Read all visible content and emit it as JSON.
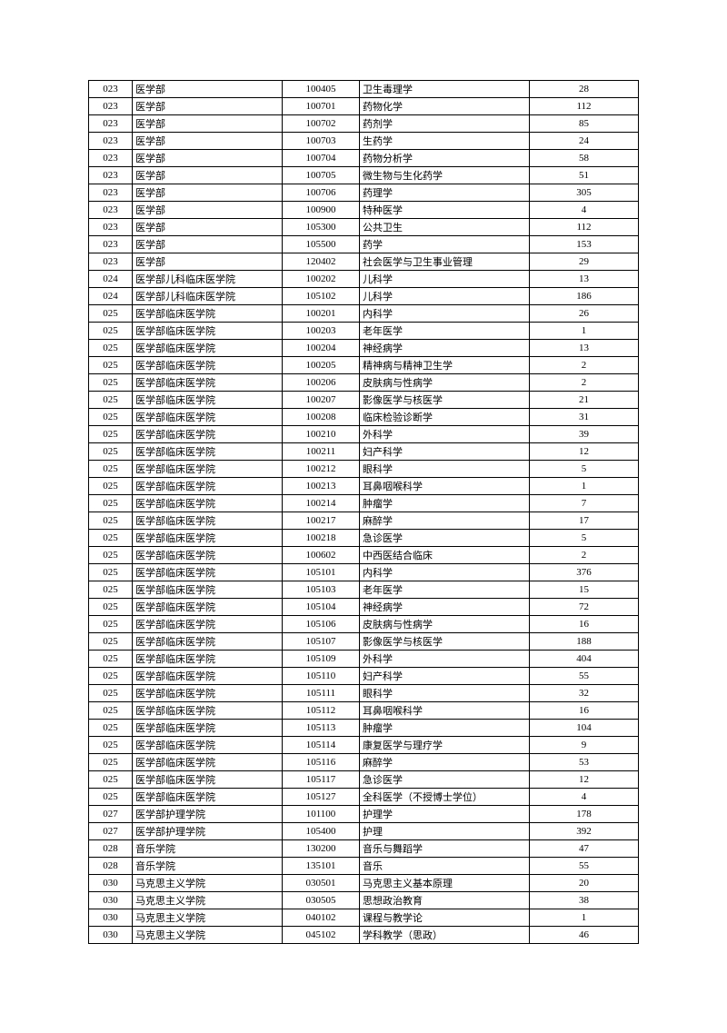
{
  "table": {
    "columns": [
      {
        "class": "col1",
        "align": "center"
      },
      {
        "class": "col2",
        "align": "left"
      },
      {
        "class": "col3",
        "align": "center"
      },
      {
        "class": "col4",
        "align": "left"
      },
      {
        "class": "col5",
        "align": "center"
      }
    ],
    "rows": [
      [
        "023",
        "医学部",
        "100405",
        "卫生毒理学",
        "28"
      ],
      [
        "023",
        "医学部",
        "100701",
        "药物化学",
        "112"
      ],
      [
        "023",
        "医学部",
        "100702",
        "药剂学",
        "85"
      ],
      [
        "023",
        "医学部",
        "100703",
        "生药学",
        "24"
      ],
      [
        "023",
        "医学部",
        "100704",
        "药物分析学",
        "58"
      ],
      [
        "023",
        "医学部",
        "100705",
        "微生物与生化药学",
        "51"
      ],
      [
        "023",
        "医学部",
        "100706",
        "药理学",
        "305"
      ],
      [
        "023",
        "医学部",
        "100900",
        "特种医学",
        "4"
      ],
      [
        "023",
        "医学部",
        "105300",
        "公共卫生",
        "112"
      ],
      [
        "023",
        "医学部",
        "105500",
        "药学",
        "153"
      ],
      [
        "023",
        "医学部",
        "120402",
        "社会医学与卫生事业管理",
        "29"
      ],
      [
        "024",
        "医学部儿科临床医学院",
        "100202",
        "儿科学",
        "13"
      ],
      [
        "024",
        "医学部儿科临床医学院",
        "105102",
        "儿科学",
        "186"
      ],
      [
        "025",
        "医学部临床医学院",
        "100201",
        "内科学",
        "26"
      ],
      [
        "025",
        "医学部临床医学院",
        "100203",
        "老年医学",
        "1"
      ],
      [
        "025",
        "医学部临床医学院",
        "100204",
        "神经病学",
        "13"
      ],
      [
        "025",
        "医学部临床医学院",
        "100205",
        "精神病与精神卫生学",
        "2"
      ],
      [
        "025",
        "医学部临床医学院",
        "100206",
        "皮肤病与性病学",
        "2"
      ],
      [
        "025",
        "医学部临床医学院",
        "100207",
        "影像医学与核医学",
        "21"
      ],
      [
        "025",
        "医学部临床医学院",
        "100208",
        "临床检验诊断学",
        "31"
      ],
      [
        "025",
        "医学部临床医学院",
        "100210",
        "外科学",
        "39"
      ],
      [
        "025",
        "医学部临床医学院",
        "100211",
        "妇产科学",
        "12"
      ],
      [
        "025",
        "医学部临床医学院",
        "100212",
        "眼科学",
        "5"
      ],
      [
        "025",
        "医学部临床医学院",
        "100213",
        "耳鼻咽喉科学",
        "1"
      ],
      [
        "025",
        "医学部临床医学院",
        "100214",
        "肿瘤学",
        "7"
      ],
      [
        "025",
        "医学部临床医学院",
        "100217",
        "麻醉学",
        "17"
      ],
      [
        "025",
        "医学部临床医学院",
        "100218",
        "急诊医学",
        "5"
      ],
      [
        "025",
        "医学部临床医学院",
        "100602",
        "中西医结合临床",
        "2"
      ],
      [
        "025",
        "医学部临床医学院",
        "105101",
        "内科学",
        "376"
      ],
      [
        "025",
        "医学部临床医学院",
        "105103",
        "老年医学",
        "15"
      ],
      [
        "025",
        "医学部临床医学院",
        "105104",
        "神经病学",
        "72"
      ],
      [
        "025",
        "医学部临床医学院",
        "105106",
        "皮肤病与性病学",
        "16"
      ],
      [
        "025",
        "医学部临床医学院",
        "105107",
        "影像医学与核医学",
        "188"
      ],
      [
        "025",
        "医学部临床医学院",
        "105109",
        "外科学",
        "404"
      ],
      [
        "025",
        "医学部临床医学院",
        "105110",
        "妇产科学",
        "55"
      ],
      [
        "025",
        "医学部临床医学院",
        "105111",
        "眼科学",
        "32"
      ],
      [
        "025",
        "医学部临床医学院",
        "105112",
        "耳鼻咽喉科学",
        "16"
      ],
      [
        "025",
        "医学部临床医学院",
        "105113",
        "肿瘤学",
        "104"
      ],
      [
        "025",
        "医学部临床医学院",
        "105114",
        "康复医学与理疗学",
        "9"
      ],
      [
        "025",
        "医学部临床医学院",
        "105116",
        "麻醉学",
        "53"
      ],
      [
        "025",
        "医学部临床医学院",
        "105117",
        "急诊医学",
        "12"
      ],
      [
        "025",
        "医学部临床医学院",
        "105127",
        "全科医学（不授博士学位）",
        "4"
      ],
      [
        "027",
        "医学部护理学院",
        "101100",
        "护理学",
        "178"
      ],
      [
        "027",
        "医学部护理学院",
        "105400",
        "护理",
        "392"
      ],
      [
        "028",
        "音乐学院",
        "130200",
        "音乐与舞蹈学",
        "47"
      ],
      [
        "028",
        "音乐学院",
        "135101",
        "音乐",
        "55"
      ],
      [
        "030",
        "马克思主义学院",
        "030501",
        "马克思主义基本原理",
        "20"
      ],
      [
        "030",
        "马克思主义学院",
        "030505",
        "思想政治教育",
        "38"
      ],
      [
        "030",
        "马克思主义学院",
        "040102",
        "课程与教学论",
        "1"
      ],
      [
        "030",
        "马克思主义学院",
        "045102",
        "学科教学（思政）",
        "46"
      ]
    ]
  }
}
